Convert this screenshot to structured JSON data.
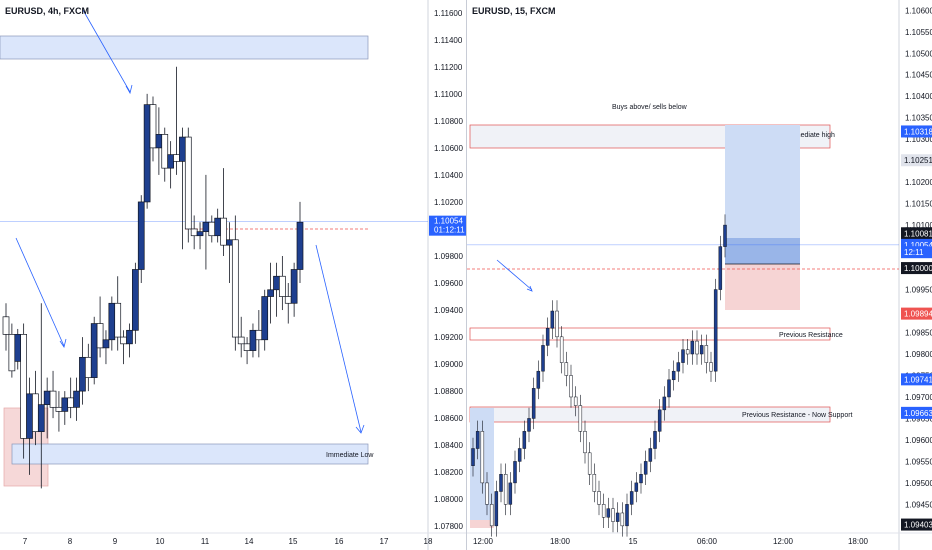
{
  "left": {
    "title": "EURUSD, 4h, FXCM",
    "price_label": "1.10054",
    "countdown": "01:12:11",
    "immediate_low_label": "Immediate Low",
    "colors": {
      "bull": "#ffffff",
      "bear": "#1e3f8f",
      "zone": "#dbe6fb",
      "zone_border": "#8a97b8",
      "red_zone": "#f6d8d8"
    },
    "chart_data": {
      "type": "candlestick",
      "x_ticks": [
        "7",
        "8",
        "9",
        "10",
        "11",
        "14",
        "15",
        "16",
        "17",
        "18"
      ],
      "y_ticks": [
        "1.11600",
        "1.11400",
        "1.11200",
        "1.11000",
        "1.10800",
        "1.10600",
        "1.10400",
        "1.10200",
        "1.10000",
        "1.09800",
        "1.09600",
        "1.09400",
        "1.09200",
        "1.09000",
        "1.08800",
        "1.08600",
        "1.08400",
        "1.08200",
        "1.08000",
        "1.07800"
      ],
      "ylim": [
        1.0775,
        1.1165
      ],
      "candles": [
        {
          "o": 1.0935,
          "h": 1.0945,
          "l": 1.091,
          "c": 1.0922
        },
        {
          "o": 1.0922,
          "h": 1.093,
          "l": 1.089,
          "c": 1.0895
        },
        {
          "o": 1.0902,
          "h": 1.0926,
          "l": 1.0896,
          "c": 1.0922
        },
        {
          "o": 1.0922,
          "h": 1.093,
          "l": 1.083,
          "c": 1.0845
        },
        {
          "o": 1.0845,
          "h": 1.089,
          "l": 1.0818,
          "c": 1.0878
        },
        {
          "o": 1.0878,
          "h": 1.0895,
          "l": 1.084,
          "c": 1.085
        },
        {
          "o": 1.085,
          "h": 1.0945,
          "l": 1.0808,
          "c": 1.087
        },
        {
          "o": 1.087,
          "h": 1.089,
          "l": 1.0845,
          "c": 1.088
        },
        {
          "o": 1.088,
          "h": 1.0895,
          "l": 1.086,
          "c": 1.0868
        },
        {
          "o": 1.0868,
          "h": 1.088,
          "l": 1.085,
          "c": 1.0865
        },
        {
          "o": 1.0865,
          "h": 1.088,
          "l": 1.0855,
          "c": 1.0875
        },
        {
          "o": 1.0875,
          "h": 1.089,
          "l": 1.086,
          "c": 1.0868
        },
        {
          "o": 1.0868,
          "h": 1.089,
          "l": 1.0858,
          "c": 1.088
        },
        {
          "o": 1.088,
          "h": 1.092,
          "l": 1.087,
          "c": 1.0905
        },
        {
          "o": 1.0905,
          "h": 1.0915,
          "l": 1.088,
          "c": 1.089
        },
        {
          "o": 1.089,
          "h": 1.0935,
          "l": 1.0885,
          "c": 1.093
        },
        {
          "o": 1.093,
          "h": 1.095,
          "l": 1.0905,
          "c": 1.0912
        },
        {
          "o": 1.0912,
          "h": 1.0925,
          "l": 1.09,
          "c": 1.0918
        },
        {
          "o": 1.0918,
          "h": 1.095,
          "l": 1.091,
          "c": 1.0945
        },
        {
          "o": 1.0945,
          "h": 1.0965,
          "l": 1.091,
          "c": 1.092
        },
        {
          "o": 1.092,
          "h": 1.0925,
          "l": 1.09,
          "c": 1.0915
        },
        {
          "o": 1.0915,
          "h": 1.093,
          "l": 1.0905,
          "c": 1.0925
        },
        {
          "o": 1.0925,
          "h": 1.0975,
          "l": 1.0915,
          "c": 1.097
        },
        {
          "o": 1.097,
          "h": 1.1025,
          "l": 1.096,
          "c": 1.102
        },
        {
          "o": 1.102,
          "h": 1.11,
          "l": 1.1015,
          "c": 1.1092
        },
        {
          "o": 1.1092,
          "h": 1.1098,
          "l": 1.105,
          "c": 1.106
        },
        {
          "o": 1.106,
          "h": 1.109,
          "l": 1.104,
          "c": 1.107
        },
        {
          "o": 1.107,
          "h": 1.1075,
          "l": 1.1035,
          "c": 1.1045
        },
        {
          "o": 1.1045,
          "h": 1.1065,
          "l": 1.103,
          "c": 1.1055
        },
        {
          "o": 1.1055,
          "h": 1.112,
          "l": 1.104,
          "c": 1.105
        },
        {
          "o": 1.105,
          "h": 1.1075,
          "l": 1.0985,
          "c": 1.1068
        },
        {
          "o": 1.1068,
          "h": 1.1075,
          "l": 1.099,
          "c": 1.1
        },
        {
          "o": 1.1,
          "h": 1.101,
          "l": 1.0985,
          "c": 1.0995
        },
        {
          "o": 1.0995,
          "h": 1.1005,
          "l": 1.0985,
          "c": 1.0998
        },
        {
          "o": 1.0998,
          "h": 1.104,
          "l": 1.097,
          "c": 1.1005
        },
        {
          "o": 1.1005,
          "h": 1.101,
          "l": 1.099,
          "c": 1.0995
        },
        {
          "o": 1.0995,
          "h": 1.1015,
          "l": 1.099,
          "c": 1.1008
        },
        {
          "o": 1.1008,
          "h": 1.1045,
          "l": 1.098,
          "c": 1.0988
        },
        {
          "o": 1.0988,
          "h": 1.1005,
          "l": 1.096,
          "c": 1.0992
        },
        {
          "o": 1.0992,
          "h": 1.101,
          "l": 1.091,
          "c": 1.092
        },
        {
          "o": 1.092,
          "h": 1.0935,
          "l": 1.0905,
          "c": 1.0915
        },
        {
          "o": 1.0915,
          "h": 1.092,
          "l": 1.09,
          "c": 1.091
        },
        {
          "o": 1.091,
          "h": 1.093,
          "l": 1.0905,
          "c": 1.0925
        },
        {
          "o": 1.0925,
          "h": 1.094,
          "l": 1.0905,
          "c": 1.0918
        },
        {
          "o": 1.0918,
          "h": 1.0955,
          "l": 1.091,
          "c": 1.095
        },
        {
          "o": 1.095,
          "h": 1.0975,
          "l": 1.093,
          "c": 1.0955
        },
        {
          "o": 1.0955,
          "h": 1.0975,
          "l": 1.0935,
          "c": 1.0965
        },
        {
          "o": 1.0965,
          "h": 1.098,
          "l": 1.094,
          "c": 1.095
        },
        {
          "o": 1.095,
          "h": 1.096,
          "l": 1.093,
          "c": 1.0945
        },
        {
          "o": 1.0945,
          "h": 1.0975,
          "l": 1.0935,
          "c": 1.097
        },
        {
          "o": 1.097,
          "h": 1.102,
          "l": 1.096,
          "c": 1.1005
        }
      ]
    }
  },
  "right": {
    "title": "EURUSD, 15, FXCM",
    "buys_label": "Buys above/ sells below",
    "immediate_high_label": "Immediate high",
    "prev_resistance_label": "Previous Resistance",
    "prev_resistance_support_label": "Previous Resistance - Now Support",
    "price_tags": [
      {
        "text": "1.10318",
        "value": 1.10318,
        "bg": "#2962ff",
        "fg": "#ffffff"
      },
      {
        "text": "1.10251",
        "value": 1.10251,
        "bg": "#e0e3eb",
        "fg": "#131722"
      },
      {
        "text": "1.10081",
        "value": 1.10081,
        "bg": "#131722",
        "fg": "#ffffff"
      },
      {
        "text": "1.10054",
        "value": 1.10054,
        "bg": "#2962ff",
        "fg": "#ffffff"
      },
      {
        "text": "12:11",
        "value": 1.10037,
        "bg": "#2962ff",
        "fg": "#ffffff"
      },
      {
        "text": "1.10000",
        "value": 1.1,
        "bg": "#131722",
        "fg": "#ffffff"
      },
      {
        "text": "1.09894",
        "value": 1.09894,
        "bg": "#ef5350",
        "fg": "#ffffff"
      },
      {
        "text": "1.09741",
        "value": 1.09741,
        "bg": "#2962ff",
        "fg": "#ffffff"
      },
      {
        "text": "1.09663",
        "value": 1.09663,
        "bg": "#2962ff",
        "fg": "#ffffff"
      },
      {
        "text": "1.09403",
        "value": 1.09403,
        "bg": "#131722",
        "fg": "#ffffff"
      }
    ],
    "chart_data": {
      "type": "candlestick",
      "x_ticks": [
        "12:00",
        "18:00",
        "15",
        "06:00",
        "12:00",
        "18:00"
      ],
      "y_ticks": [
        "1.10600",
        "1.10550",
        "1.10500",
        "1.10450",
        "1.10400",
        "1.10350",
        "1.10300",
        "1.10250",
        "1.10200",
        "1.10150",
        "1.10100",
        "1.10050",
        "1.10000",
        "1.09950",
        "1.09900",
        "1.09850",
        "1.09800",
        "1.09750",
        "1.09700",
        "1.09650",
        "1.09600",
        "1.09550",
        "1.09500",
        "1.09450",
        "1.09400"
      ],
      "ylim": [
        1.09395,
        1.1061
      ],
      "closes": [
        1.0958,
        1.0962,
        1.095,
        1.0945,
        1.094,
        1.0948,
        1.0952,
        1.0945,
        1.095,
        1.0955,
        1.0958,
        1.0962,
        1.0965,
        1.0972,
        1.0976,
        1.0982,
        1.0986,
        1.099,
        1.0984,
        1.0978,
        1.0975,
        1.097,
        1.0968,
        1.0962,
        1.0957,
        1.0952,
        1.0948,
        1.0945,
        1.0942,
        1.0944,
        1.0941,
        1.0943,
        1.094,
        1.0945,
        1.0948,
        1.095,
        1.0952,
        1.0955,
        1.0958,
        1.0962,
        1.0967,
        1.097,
        1.0974,
        1.0976,
        1.0978,
        1.0981,
        1.098,
        1.0983,
        1.098,
        1.0982,
        1.0978,
        1.0976,
        1.0995,
        1.1005,
        1.101
      ]
    }
  }
}
